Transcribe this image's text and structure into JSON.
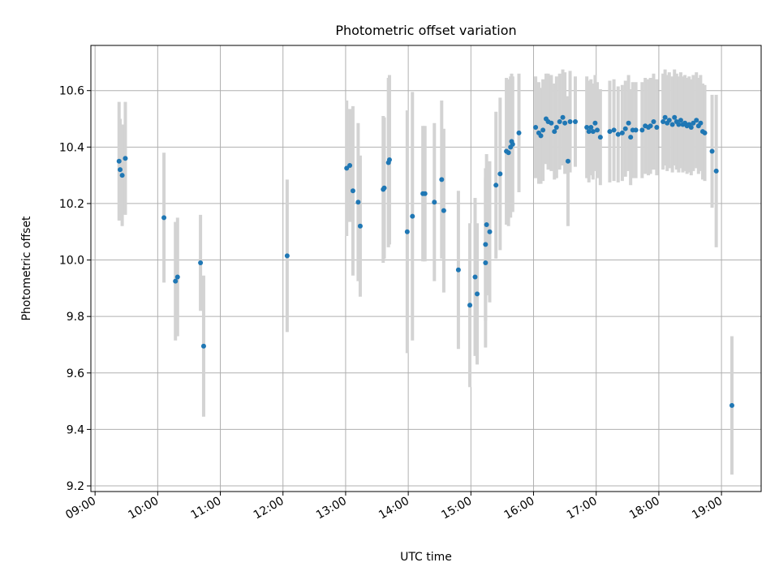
{
  "chart_data": {
    "type": "scatter",
    "title": "Photometric offset variation",
    "xlabel": "UTC time",
    "ylabel": "Photometric offset",
    "xlim": [
      "08:56",
      "19:38"
    ],
    "ylim": [
      9.18,
      10.76
    ],
    "x_ticks": [
      "09:00",
      "10:00",
      "11:00",
      "12:00",
      "13:00",
      "14:00",
      "15:00",
      "16:00",
      "17:00",
      "18:00",
      "19:00"
    ],
    "y_ticks": [
      "9.2",
      "9.4",
      "9.6",
      "9.8",
      "10.0",
      "10.2",
      "10.4",
      "10.6"
    ],
    "grid": true,
    "colors": {
      "point": "#1f77b4",
      "errorbar": "#d3d3d3",
      "grid": "#b0b0b0"
    },
    "series": [
      {
        "points": [
          {
            "x": "09:23",
            "y": 10.35,
            "err": 0.21
          },
          {
            "x": "09:26",
            "y": 10.3,
            "err": 0.18
          },
          {
            "x": "09:24",
            "y": 10.32,
            "err": 0.18
          },
          {
            "x": "09:29",
            "y": 10.36,
            "err": 0.2
          },
          {
            "x": "10:06",
            "y": 10.15,
            "err": 0.23
          },
          {
            "x": "10:17",
            "y": 9.925,
            "err": 0.21
          },
          {
            "x": "10:19",
            "y": 9.94,
            "err": 0.21
          },
          {
            "x": "10:41",
            "y": 9.99,
            "err": 0.17
          },
          {
            "x": "10:44",
            "y": 9.695,
            "err": 0.25
          },
          {
            "x": "12:04",
            "y": 10.015,
            "err": 0.27
          },
          {
            "x": "13:01",
            "y": 10.325,
            "err": 0.24
          },
          {
            "x": "13:04",
            "y": 10.335,
            "err": 0.2
          },
          {
            "x": "13:07",
            "y": 10.245,
            "err": 0.3
          },
          {
            "x": "13:12",
            "y": 10.205,
            "err": 0.28
          },
          {
            "x": "13:14",
            "y": 10.12,
            "err": 0.25
          },
          {
            "x": "13:36",
            "y": 10.25,
            "err": 0.26
          },
          {
            "x": "13:37",
            "y": 10.255,
            "err": 0.25
          },
          {
            "x": "13:41",
            "y": 10.345,
            "err": 0.3
          },
          {
            "x": "13:42",
            "y": 10.355,
            "err": 0.3
          },
          {
            "x": "13:59",
            "y": 10.1,
            "err": 0.43
          },
          {
            "x": "14:04",
            "y": 10.155,
            "err": 0.44
          },
          {
            "x": "14:14",
            "y": 10.235,
            "err": 0.24
          },
          {
            "x": "14:16",
            "y": 10.235,
            "err": 0.24
          },
          {
            "x": "14:25",
            "y": 10.205,
            "err": 0.28
          },
          {
            "x": "14:32",
            "y": 10.285,
            "err": 0.28
          },
          {
            "x": "14:34",
            "y": 10.175,
            "err": 0.29
          },
          {
            "x": "14:48",
            "y": 9.965,
            "err": 0.28
          },
          {
            "x": "14:59",
            "y": 9.84,
            "err": 0.29
          },
          {
            "x": "15:04",
            "y": 9.94,
            "err": 0.28
          },
          {
            "x": "15:06",
            "y": 9.88,
            "err": 0.25
          },
          {
            "x": "15:14",
            "y": 10.055,
            "err": 0.27
          },
          {
            "x": "15:15",
            "y": 10.125,
            "err": 0.25
          },
          {
            "x": "15:14",
            "y": 9.99,
            "err": 0.3
          },
          {
            "x": "15:18",
            "y": 10.1,
            "err": 0.25
          },
          {
            "x": "15:24",
            "y": 10.265,
            "err": 0.26
          },
          {
            "x": "15:28",
            "y": 10.305,
            "err": 0.27
          },
          {
            "x": "15:34",
            "y": 10.385,
            "err": 0.26
          },
          {
            "x": "15:36",
            "y": 10.38,
            "err": 0.26
          },
          {
            "x": "15:38",
            "y": 10.4,
            "err": 0.25
          },
          {
            "x": "15:39",
            "y": 10.42,
            "err": 0.24
          },
          {
            "x": "15:40",
            "y": 10.41,
            "err": 0.24
          },
          {
            "x": "15:46",
            "y": 10.45,
            "err": 0.21
          },
          {
            "x": "16:02",
            "y": 10.47,
            "err": 0.18
          },
          {
            "x": "16:05",
            "y": 10.45,
            "err": 0.18
          },
          {
            "x": "16:07",
            "y": 10.44,
            "err": 0.17
          },
          {
            "x": "16:09",
            "y": 10.46,
            "err": 0.18
          },
          {
            "x": "16:12",
            "y": 10.5,
            "err": 0.16
          },
          {
            "x": "16:14",
            "y": 10.49,
            "err": 0.17
          },
          {
            "x": "16:17",
            "y": 10.485,
            "err": 0.17
          },
          {
            "x": "16:20",
            "y": 10.455,
            "err": 0.17
          },
          {
            "x": "16:22",
            "y": 10.47,
            "err": 0.18
          },
          {
            "x": "16:25",
            "y": 10.49,
            "err": 0.17
          },
          {
            "x": "16:28",
            "y": 10.505,
            "err": 0.17
          },
          {
            "x": "16:30",
            "y": 10.485,
            "err": 0.18
          },
          {
            "x": "16:33",
            "y": 10.35,
            "err": 0.23
          },
          {
            "x": "16:35",
            "y": 10.49,
            "err": 0.18
          },
          {
            "x": "16:40",
            "y": 10.49,
            "err": 0.16
          },
          {
            "x": "16:51",
            "y": 10.47,
            "err": 0.18
          },
          {
            "x": "16:53",
            "y": 10.455,
            "err": 0.18
          },
          {
            "x": "16:55",
            "y": 10.47,
            "err": 0.17
          },
          {
            "x": "16:57",
            "y": 10.455,
            "err": 0.17
          },
          {
            "x": "16:59",
            "y": 10.485,
            "err": 0.17
          },
          {
            "x": "17:01",
            "y": 10.46,
            "err": 0.17
          },
          {
            "x": "17:04",
            "y": 10.435,
            "err": 0.17
          },
          {
            "x": "17:13",
            "y": 10.455,
            "err": 0.18
          },
          {
            "x": "17:17",
            "y": 10.46,
            "err": 0.18
          },
          {
            "x": "17:21",
            "y": 10.445,
            "err": 0.17
          },
          {
            "x": "17:25",
            "y": 10.45,
            "err": 0.17
          },
          {
            "x": "17:28",
            "y": 10.465,
            "err": 0.17
          },
          {
            "x": "17:31",
            "y": 10.485,
            "err": 0.17
          },
          {
            "x": "17:33",
            "y": 10.435,
            "err": 0.17
          },
          {
            "x": "17:35",
            "y": 10.46,
            "err": 0.17
          },
          {
            "x": "17:38",
            "y": 10.46,
            "err": 0.17
          },
          {
            "x": "17:44",
            "y": 10.46,
            "err": 0.17
          },
          {
            "x": "17:47",
            "y": 10.475,
            "err": 0.17
          },
          {
            "x": "17:50",
            "y": 10.47,
            "err": 0.17
          },
          {
            "x": "17:52",
            "y": 10.475,
            "err": 0.17
          },
          {
            "x": "17:55",
            "y": 10.49,
            "err": 0.17
          },
          {
            "x": "17:58",
            "y": 10.47,
            "err": 0.17
          },
          {
            "x": "18:04",
            "y": 10.49,
            "err": 0.17
          },
          {
            "x": "18:06",
            "y": 10.505,
            "err": 0.17
          },
          {
            "x": "18:08",
            "y": 10.485,
            "err": 0.17
          },
          {
            "x": "18:10",
            "y": 10.495,
            "err": 0.17
          },
          {
            "x": "18:13",
            "y": 10.48,
            "err": 0.17
          },
          {
            "x": "18:15",
            "y": 10.505,
            "err": 0.17
          },
          {
            "x": "18:17",
            "y": 10.49,
            "err": 0.17
          },
          {
            "x": "18:19",
            "y": 10.48,
            "err": 0.17
          },
          {
            "x": "18:21",
            "y": 10.495,
            "err": 0.17
          },
          {
            "x": "18:23",
            "y": 10.48,
            "err": 0.17
          },
          {
            "x": "18:25",
            "y": 10.485,
            "err": 0.17
          },
          {
            "x": "18:27",
            "y": 10.475,
            "err": 0.17
          },
          {
            "x": "18:29",
            "y": 10.48,
            "err": 0.17
          },
          {
            "x": "18:31",
            "y": 10.47,
            "err": 0.17
          },
          {
            "x": "18:33",
            "y": 10.485,
            "err": 0.17
          },
          {
            "x": "18:36",
            "y": 10.495,
            "err": 0.17
          },
          {
            "x": "18:38",
            "y": 10.475,
            "err": 0.17
          },
          {
            "x": "18:40",
            "y": 10.485,
            "err": 0.17
          },
          {
            "x": "18:42",
            "y": 10.455,
            "err": 0.17
          },
          {
            "x": "18:44",
            "y": 10.45,
            "err": 0.17
          },
          {
            "x": "18:51",
            "y": 10.385,
            "err": 0.2
          },
          {
            "x": "18:55",
            "y": 10.315,
            "err": 0.27
          },
          {
            "x": "19:10",
            "y": 9.485,
            "err": 0.245
          }
        ]
      }
    ]
  }
}
